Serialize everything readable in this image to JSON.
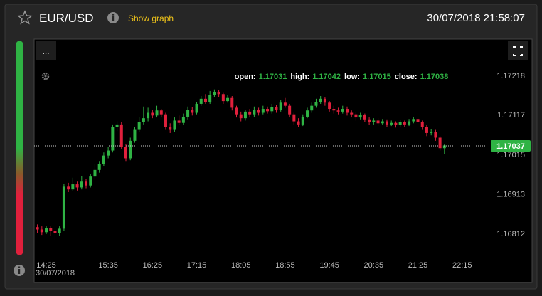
{
  "header": {
    "title": "EUR/USD",
    "link": "Show graph",
    "timestamp": "30/07/2018 21:58:07"
  },
  "chart_data": {
    "type": "candlestick",
    "menu_label": "...",
    "x_date": "30/07/2018",
    "categories": [
      null,
      null,
      "14:25",
      null,
      null,
      null,
      null,
      null,
      null,
      null,
      null,
      null,
      null,
      null,
      null,
      null,
      "15:35",
      null,
      null,
      null,
      null,
      null,
      null,
      null,
      null,
      null,
      "16:25",
      null,
      null,
      null,
      null,
      null,
      null,
      null,
      null,
      null,
      "17:15",
      null,
      null,
      null,
      null,
      null,
      null,
      null,
      null,
      null,
      "18:05",
      null,
      null,
      null,
      null,
      null,
      null,
      null,
      null,
      null,
      "18:55",
      null,
      null,
      null,
      null,
      null,
      null,
      null,
      null,
      null,
      "19:45",
      null,
      null,
      null,
      null,
      null,
      null,
      null,
      null,
      null,
      "20:35",
      null,
      null,
      null,
      null,
      null,
      null,
      null,
      null,
      null,
      "21:25",
      null,
      null,
      null,
      null,
      null,
      null,
      null,
      null,
      null,
      "22:15"
    ],
    "open": [
      1.16828,
      1.16822,
      1.16815,
      1.16826,
      1.16818,
      1.16812,
      1.16824,
      1.16932,
      1.16925,
      1.16938,
      1.1693,
      1.16945,
      1.16935,
      1.16958,
      1.16975,
      1.1699,
      1.17012,
      1.17025,
      1.17085,
      1.17092,
      1.17035,
      1.17005,
      1.1705,
      1.17078,
      1.17098,
      1.17108,
      1.17122,
      1.17115,
      1.17128,
      1.17118,
      1.17085,
      1.17078,
      1.17102,
      1.17096,
      1.17112,
      1.1713,
      1.17122,
      1.17145,
      1.17158,
      1.1715,
      1.17168,
      1.17176,
      1.1717,
      1.17152,
      1.1716,
      1.17135,
      1.17118,
      1.17108,
      1.17125,
      1.17118,
      1.1713,
      1.17122,
      1.17132,
      1.17126,
      1.17136,
      1.1713,
      1.17148,
      1.1714,
      1.17118,
      1.171,
      1.17092,
      1.17112,
      1.17128,
      1.1714,
      1.1715,
      1.17158,
      1.17148,
      1.17132,
      1.17128,
      1.17125,
      1.17132,
      1.17122,
      1.17118,
      1.1711,
      1.17116,
      1.17105,
      1.17098,
      1.17102,
      1.17095,
      1.171,
      1.17092,
      1.17096,
      1.1709,
      1.17098,
      1.17092,
      1.171,
      1.17106,
      1.17098,
      1.17085,
      1.1707,
      1.17072,
      1.17058,
      1.17031,
      null,
      null,
      null,
      null
    ],
    "high": [
      1.16835,
      1.1683,
      1.16832,
      1.1683,
      1.16824,
      1.1683,
      1.1694,
      1.16942,
      1.16955,
      1.16945,
      1.1696,
      1.16952,
      1.16965,
      1.1699,
      1.16998,
      1.1702,
      1.17035,
      1.17092,
      1.171,
      1.17098,
      1.17042,
      1.17058,
      1.17085,
      1.1711,
      1.17138,
      1.17135,
      1.1713,
      1.1714,
      1.17132,
      1.17122,
      1.17095,
      1.1711,
      1.17115,
      1.1712,
      1.17138,
      1.17136,
      1.1715,
      1.17165,
      1.1717,
      1.17178,
      1.17182,
      1.1718,
      1.17175,
      1.17168,
      1.17165,
      1.1714,
      1.17125,
      1.1713,
      1.17132,
      1.17138,
      1.17135,
      1.1714,
      1.17138,
      1.17145,
      1.17142,
      1.17155,
      1.1716,
      1.17145,
      1.17122,
      1.17108,
      1.17118,
      1.17135,
      1.17148,
      1.17158,
      1.17165,
      1.17162,
      1.17152,
      1.1714,
      1.17135,
      1.1714,
      1.17138,
      1.17128,
      1.17125,
      1.17122,
      1.1712,
      1.1711,
      1.17108,
      1.17108,
      1.17106,
      1.17105,
      1.17102,
      1.171,
      1.17104,
      1.17102,
      1.17106,
      1.17112,
      1.1711,
      1.17102,
      1.1709,
      1.1708,
      1.17078,
      1.17062,
      1.17042,
      null,
      null,
      null,
      null
    ],
    "low": [
      1.16812,
      1.16808,
      1.1681,
      1.16805,
      1.16795,
      1.16805,
      1.16818,
      1.16918,
      1.1692,
      1.16922,
      1.16925,
      1.16928,
      1.1693,
      1.1695,
      1.16968,
      1.16985,
      1.17005,
      1.1702,
      1.17075,
      1.17028,
      1.16998,
      1.17,
      1.17045,
      1.17072,
      1.17092,
      1.171,
      1.17108,
      1.1711,
      1.1711,
      1.17078,
      1.1707,
      1.17072,
      1.1709,
      1.1709,
      1.17105,
      1.17115,
      1.17118,
      1.1714,
      1.17145,
      1.17145,
      1.17162,
      1.17162,
      1.17145,
      1.17148,
      1.17128,
      1.1711,
      1.171,
      1.17102,
      1.1711,
      1.17112,
      1.17115,
      1.17118,
      1.1712,
      1.1712,
      1.17122,
      1.17125,
      1.17135,
      1.1711,
      1.17092,
      1.17085,
      1.17088,
      1.17108,
      1.17122,
      1.17135,
      1.17145,
      1.1714,
      1.17125,
      1.1712,
      1.17118,
      1.1712,
      1.17115,
      1.1711,
      1.17102,
      1.17105,
      1.17098,
      1.1709,
      1.17092,
      1.17088,
      1.1709,
      1.17085,
      1.17088,
      1.17084,
      1.17085,
      1.17086,
      1.17088,
      1.17095,
      1.1709,
      1.17078,
      1.17062,
      1.17064,
      1.1705,
      1.17025,
      1.17015,
      null,
      null,
      null,
      null
    ],
    "close": [
      1.16822,
      1.16815,
      1.16826,
      1.16818,
      1.16812,
      1.16824,
      1.16932,
      1.16925,
      1.16938,
      1.1693,
      1.16945,
      1.16935,
      1.16958,
      1.16975,
      1.1699,
      1.17012,
      1.17025,
      1.17085,
      1.17092,
      1.17035,
      1.17005,
      1.1705,
      1.17078,
      1.17098,
      1.17108,
      1.17122,
      1.17115,
      1.17128,
      1.17118,
      1.17085,
      1.17078,
      1.17102,
      1.17096,
      1.17112,
      1.1713,
      1.17122,
      1.17145,
      1.17158,
      1.1715,
      1.17168,
      1.17176,
      1.1717,
      1.17152,
      1.1716,
      1.17135,
      1.17118,
      1.17108,
      1.17125,
      1.17118,
      1.1713,
      1.17122,
      1.17132,
      1.17126,
      1.17136,
      1.1713,
      1.17148,
      1.1714,
      1.17118,
      1.171,
      1.17092,
      1.17112,
      1.17128,
      1.1714,
      1.1715,
      1.17158,
      1.17148,
      1.17132,
      1.17128,
      1.17125,
      1.17132,
      1.17122,
      1.17118,
      1.1711,
      1.17116,
      1.17105,
      1.17098,
      1.17102,
      1.17095,
      1.171,
      1.17092,
      1.17096,
      1.1709,
      1.17098,
      1.17092,
      1.171,
      1.17106,
      1.17098,
      1.17085,
      1.1707,
      1.17072,
      1.17058,
      1.17031,
      1.17038,
      null,
      null,
      null,
      null
    ],
    "up_color": "#2fb344",
    "down_color": "#e0203c",
    "ylim": [
      1.16757,
      1.17251
    ],
    "yticks": [
      1.16812,
      1.16913,
      1.17015,
      1.17117,
      1.17218
    ],
    "grid": false,
    "current_price": 1.17037,
    "ohlc_labels": [
      "open:",
      "high:",
      "low:",
      "close:"
    ]
  }
}
